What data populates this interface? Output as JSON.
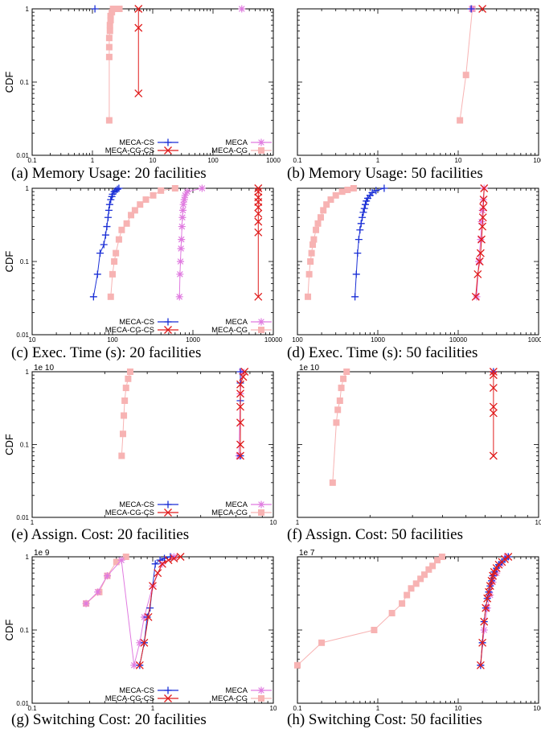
{
  "figure": {
    "panels": [
      {
        "caption": "(a) Memory Usage: 20 facilities"
      },
      {
        "caption": "(b) Memory Usage: 50 facilities"
      },
      {
        "caption": "(c) Exec. Time (s): 20 facilities"
      },
      {
        "caption": "(d) Exec. Time (s): 50 facilities"
      },
      {
        "caption": "(e) Assign. Cost: 20 facilities"
      },
      {
        "caption": "(f) Assign. Cost: 50 facilities"
      },
      {
        "caption": "(g) Switching Cost: 20 facilities"
      },
      {
        "caption": "(h) Switching Cost: 50 facilities"
      }
    ]
  },
  "colors": {
    "MECA-CS": "#1a2fd6",
    "MECA-CG-CS": "#e01c1c",
    "MECA": "#e07be0",
    "MECA-CG": "#f7b3b3"
  },
  "chart_data": [
    {
      "type": "line",
      "ylabel": "CDF",
      "xlabel": "",
      "x_log": true,
      "y_log": true,
      "xlim": [
        0.1,
        1000
      ],
      "ylim": [
        0.01,
        1
      ],
      "xticks": [
        "0.1",
        "1",
        "10",
        "100",
        "1000"
      ],
      "yticks": [
        "1",
        "0.1",
        "0.01"
      ],
      "exponent": "",
      "legend": true,
      "legend_position": "bottom",
      "series": [
        {
          "name": "MECA-CS",
          "marker": "plus",
          "x": [
            1.1
          ],
          "y": [
            1
          ]
        },
        {
          "name": "MECA-CG-CS",
          "marker": "x",
          "x": [
            5.8,
            5.8,
            5.8
          ],
          "y": [
            0.07,
            0.55,
            1
          ]
        },
        {
          "name": "MECA",
          "marker": "star",
          "x": [
            300
          ],
          "y": [
            1
          ]
        },
        {
          "name": "MECA-CG",
          "marker": "square",
          "x": [
            1.9,
            1.9,
            1.9,
            1.9,
            1.95,
            1.95,
            2.0,
            2.0,
            2.1,
            2.2,
            2.4,
            2.6,
            2.8
          ],
          "y": [
            0.03,
            0.22,
            0.3,
            0.4,
            0.5,
            0.6,
            0.7,
            0.8,
            0.9,
            1,
            1,
            1,
            1
          ]
        }
      ]
    },
    {
      "type": "line",
      "ylabel": "",
      "xlabel": "",
      "x_log": true,
      "y_log": true,
      "xlim": [
        0.1,
        100
      ],
      "ylim": [
        0.01,
        1
      ],
      "xticks": [
        "0.1",
        "1",
        "10",
        "100"
      ],
      "yticks": [],
      "exponent": "",
      "legend": false,
      "series": [
        {
          "name": "MECA-CS",
          "marker": "plus",
          "x": [
            14.5
          ],
          "y": [
            1
          ]
        },
        {
          "name": "MECA-CG-CS",
          "marker": "x",
          "x": [
            20
          ],
          "y": [
            1
          ]
        },
        {
          "name": "MECA",
          "marker": "star",
          "x": [
            14.8
          ],
          "y": [
            1
          ]
        },
        {
          "name": "MECA-CG",
          "marker": "square",
          "x": [
            10.5,
            12.5,
            15
          ],
          "y": [
            0.03,
            0.125,
            1
          ]
        }
      ]
    },
    {
      "type": "line",
      "ylabel": "CDF",
      "xlabel": "",
      "x_log": true,
      "y_log": true,
      "xlim": [
        10,
        10000
      ],
      "ylim": [
        0.01,
        1
      ],
      "xticks": [
        "10",
        "100",
        "1000",
        "10000"
      ],
      "yticks": [
        "1",
        "0.1",
        "0.01"
      ],
      "exponent": "",
      "legend": true,
      "legend_position": "bottom",
      "series": [
        {
          "name": "MECA-CS",
          "marker": "plus",
          "x": [
            58,
            65,
            70,
            78,
            82,
            85,
            88,
            90,
            92,
            95,
            98,
            100,
            105,
            110,
            115,
            120
          ],
          "y": [
            0.033,
            0.067,
            0.13,
            0.17,
            0.23,
            0.3,
            0.4,
            0.5,
            0.6,
            0.7,
            0.77,
            0.83,
            0.9,
            0.93,
            0.97,
            1
          ]
        },
        {
          "name": "MECA-CG-CS",
          "marker": "x",
          "x": [
            6500,
            6500,
            6500,
            6500,
            6500,
            6500,
            6500,
            6500,
            6500
          ],
          "y": [
            0.033,
            0.25,
            0.35,
            0.45,
            0.55,
            0.65,
            0.75,
            0.9,
            1
          ]
        },
        {
          "name": "MECA",
          "marker": "star",
          "x": [
            680,
            690,
            700,
            710,
            720,
            730,
            740,
            750,
            760,
            780,
            800,
            850,
            1300
          ],
          "y": [
            0.033,
            0.067,
            0.1,
            0.15,
            0.2,
            0.3,
            0.4,
            0.5,
            0.6,
            0.7,
            0.8,
            0.9,
            1
          ]
        },
        {
          "name": "MECA-CG",
          "marker": "square",
          "x": [
            95,
            100,
            105,
            110,
            120,
            130,
            150,
            170,
            190,
            220,
            260,
            320,
            400,
            600
          ],
          "y": [
            0.033,
            0.067,
            0.1,
            0.13,
            0.2,
            0.27,
            0.33,
            0.43,
            0.5,
            0.6,
            0.7,
            0.8,
            0.93,
            1
          ]
        }
      ]
    },
    {
      "type": "line",
      "ylabel": "",
      "xlabel": "",
      "x_log": true,
      "y_log": true,
      "xlim": [
        100,
        100000
      ],
      "ylim": [
        0.01,
        1
      ],
      "xticks": [
        "100",
        "1000",
        "10000",
        "100000"
      ],
      "yticks": [],
      "exponent": "",
      "legend": false,
      "series": [
        {
          "name": "MECA-CS",
          "marker": "plus",
          "x": [
            520,
            540,
            560,
            580,
            600,
            620,
            640,
            660,
            680,
            700,
            720,
            750,
            800,
            850,
            950,
            1200
          ],
          "y": [
            0.033,
            0.067,
            0.13,
            0.2,
            0.27,
            0.33,
            0.4,
            0.47,
            0.53,
            0.6,
            0.67,
            0.73,
            0.8,
            0.87,
            0.93,
            1
          ]
        },
        {
          "name": "MECA-CG-CS",
          "marker": "x",
          "x": [
            16500,
            17500,
            18500,
            19000,
            19500,
            20000,
            20300,
            20500,
            20700,
            21000
          ],
          "y": [
            0.033,
            0.067,
            0.1,
            0.13,
            0.2,
            0.3,
            0.4,
            0.55,
            0.7,
            1
          ]
        },
        {
          "name": "MECA",
          "marker": "star",
          "x": [
            17000,
            18000,
            19000,
            19500,
            20000,
            20500,
            21000
          ],
          "y": [
            0.033,
            0.1,
            0.2,
            0.35,
            0.5,
            0.7,
            1
          ]
        },
        {
          "name": "MECA-CG",
          "marker": "square",
          "x": [
            135,
            140,
            145,
            150,
            155,
            160,
            170,
            180,
            195,
            210,
            230,
            260,
            300,
            360,
            420,
            500
          ],
          "y": [
            0.033,
            0.067,
            0.1,
            0.13,
            0.17,
            0.2,
            0.27,
            0.33,
            0.4,
            0.5,
            0.6,
            0.7,
            0.8,
            0.9,
            0.95,
            1
          ]
        }
      ]
    },
    {
      "type": "line",
      "ylabel": "CDF",
      "xlabel": "",
      "x_log": true,
      "y_log": true,
      "xlim": [
        1,
        10
      ],
      "ylim": [
        0.01,
        1
      ],
      "xticks": [
        "1",
        "10"
      ],
      "yticks": [
        "1",
        "0.1",
        "0.01"
      ],
      "exponent": "1e 10",
      "legend": true,
      "legend_position": "bottom",
      "series": [
        {
          "name": "MECA-CS",
          "marker": "plus",
          "x": [
            7.3,
            7.3,
            7.3,
            7.3
          ],
          "y": [
            0.07,
            0.4,
            0.7,
            1
          ]
        },
        {
          "name": "MECA-CG-CS",
          "marker": "x",
          "x": [
            7.3,
            7.3,
            7.3,
            7.3,
            7.3,
            7.3,
            7.5,
            7.6
          ],
          "y": [
            0.07,
            0.1,
            0.2,
            0.33,
            0.5,
            0.67,
            0.85,
            1
          ]
        },
        {
          "name": "MECA",
          "marker": "star",
          "x": [
            7.2,
            7.3,
            7.4
          ],
          "y": [
            0.07,
            0.5,
            1
          ]
        },
        {
          "name": "MECA-CG",
          "marker": "square",
          "x": [
            2.35,
            2.38,
            2.4,
            2.42,
            2.45,
            2.5,
            2.55
          ],
          "y": [
            0.07,
            0.14,
            0.25,
            0.4,
            0.6,
            0.8,
            1
          ]
        }
      ]
    },
    {
      "type": "line",
      "ylabel": "",
      "xlabel": "",
      "x_log": true,
      "y_log": true,
      "xlim": [
        1,
        10
      ],
      "ylim": [
        0.01,
        1
      ],
      "xticks": [
        "1",
        "10"
      ],
      "yticks": [],
      "exponent": "1e 10",
      "legend": false,
      "series": [
        {
          "name": "MECA-CS",
          "marker": "plus",
          "x": [
            6.5
          ],
          "y": [
            1
          ]
        },
        {
          "name": "MECA-CG-CS",
          "marker": "x",
          "x": [
            6.5,
            6.5,
            6.5,
            6.5,
            6.5,
            6.5
          ],
          "y": [
            0.07,
            0.27,
            0.33,
            0.6,
            0.9,
            1
          ]
        },
        {
          "name": "MECA",
          "marker": "star",
          "x": [
            6.5
          ],
          "y": [
            1
          ]
        },
        {
          "name": "MECA-CG",
          "marker": "square",
          "x": [
            1.4,
            1.45,
            1.47,
            1.5,
            1.52,
            1.55,
            1.6
          ],
          "y": [
            0.03,
            0.2,
            0.3,
            0.4,
            0.6,
            0.8,
            1
          ]
        }
      ]
    },
    {
      "type": "line",
      "ylabel": "CDF",
      "xlabel": "",
      "x_log": true,
      "y_log": true,
      "xlim": [
        0.1,
        10
      ],
      "ylim": [
        0.01,
        1
      ],
      "xticks": [
        "0.1",
        "1",
        "10"
      ],
      "yticks": [
        "1",
        "0.1",
        "0.01"
      ],
      "exponent": "1e 9",
      "legend": true,
      "legend_position": "bottom",
      "series": [
        {
          "name": "MECA-CS",
          "marker": "plus",
          "x": [
            0.78,
            0.85,
            0.9,
            0.95,
            1.05,
            1.15,
            1.25,
            1.4
          ],
          "y": [
            0.033,
            0.067,
            0.15,
            0.2,
            0.8,
            0.9,
            0.95,
            1
          ]
        },
        {
          "name": "MECA-CG-CS",
          "marker": "x",
          "x": [
            0.78,
            0.85,
            0.92,
            1.0,
            1.1,
            1.2,
            1.35,
            1.5,
            1.7
          ],
          "y": [
            0.033,
            0.067,
            0.15,
            0.4,
            0.6,
            0.8,
            0.9,
            0.95,
            1
          ]
        },
        {
          "name": "MECA",
          "marker": "star",
          "x": [
            0.28,
            0.35,
            0.42,
            0.55,
            0.7,
            0.78,
            0.85,
            1.0,
            1.2,
            1.5
          ],
          "y": [
            0.23,
            0.33,
            0.55,
            0.9,
            0.033,
            0.067,
            0.15,
            0.4,
            0.8,
            1
          ]
        },
        {
          "name": "MECA-CG",
          "marker": "square",
          "x": [
            0.28,
            0.36,
            0.42,
            0.5,
            0.6
          ],
          "y": [
            0.23,
            0.33,
            0.55,
            0.85,
            1
          ]
        }
      ]
    },
    {
      "type": "line",
      "ylabel": "",
      "xlabel": "",
      "x_log": true,
      "y_log": true,
      "xlim": [
        0.1,
        100
      ],
      "ylim": [
        0.01,
        1
      ],
      "xticks": [
        "0.1",
        "1",
        "10",
        "100"
      ],
      "yticks": [],
      "exponent": "1e 7",
      "legend": false,
      "series": [
        {
          "name": "MECA-CS",
          "marker": "plus",
          "x": [
            19,
            20,
            21,
            22,
            23,
            24,
            25,
            26,
            27,
            28,
            30,
            32,
            35,
            38,
            42
          ],
          "y": [
            0.033,
            0.067,
            0.13,
            0.2,
            0.27,
            0.33,
            0.4,
            0.47,
            0.55,
            0.62,
            0.7,
            0.78,
            0.85,
            0.93,
            1
          ]
        },
        {
          "name": "MECA-CG-CS",
          "marker": "x",
          "x": [
            19,
            20,
            21,
            22,
            23,
            24,
            25,
            26,
            27,
            28,
            30,
            32,
            35,
            38,
            42
          ],
          "y": [
            0.033,
            0.067,
            0.13,
            0.2,
            0.27,
            0.33,
            0.4,
            0.47,
            0.55,
            0.62,
            0.7,
            0.78,
            0.85,
            0.93,
            1
          ]
        },
        {
          "name": "MECA",
          "marker": "star",
          "x": [
            19,
            21,
            23,
            25,
            27,
            30,
            34,
            40
          ],
          "y": [
            0.033,
            0.1,
            0.2,
            0.3,
            0.45,
            0.6,
            0.8,
            1
          ]
        },
        {
          "name": "MECA-CG",
          "marker": "square",
          "x": [
            0.1,
            0.2,
            0.9,
            1.5,
            2.0,
            2.3,
            2.6,
            3.0,
            3.4,
            3.8,
            4.3,
            4.8,
            5.5,
            6.3
          ],
          "y": [
            0.033,
            0.067,
            0.1,
            0.17,
            0.23,
            0.3,
            0.37,
            0.43,
            0.5,
            0.57,
            0.67,
            0.75,
            0.9,
            1
          ]
        }
      ]
    }
  ]
}
